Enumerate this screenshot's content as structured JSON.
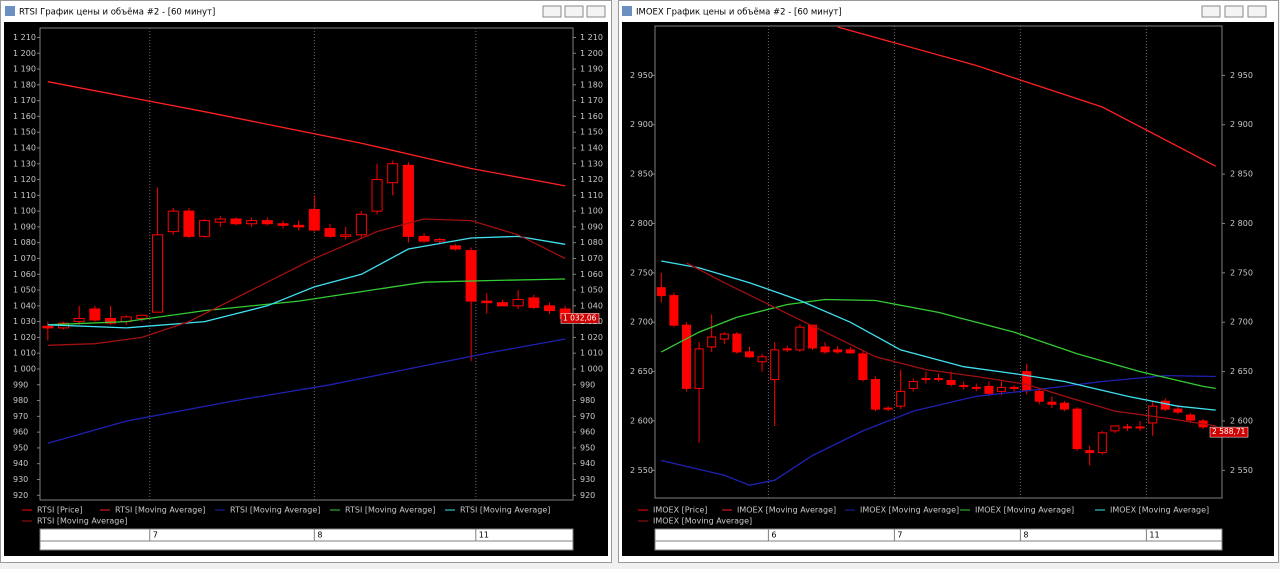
{
  "chart_data": [
    {
      "type": "candlestick",
      "title": "RTSI График цены и объёма #2 - [60 минут]",
      "xlim": [
        -0.5,
        33.5
      ],
      "ylim": [
        917,
        1216
      ],
      "yticks": [
        920,
        930,
        940,
        950,
        960,
        970,
        980,
        990,
        {
          "value": 1000,
          "label": "1 000"
        },
        {
          "value": 1010,
          "label": "1 010"
        },
        {
          "value": 1020,
          "label": "1 020"
        },
        {
          "value": 1030,
          "label": "1 030"
        },
        {
          "value": 1040,
          "label": "1 040"
        },
        {
          "value": 1050,
          "label": "1 050"
        },
        {
          "value": 1060,
          "label": "1 060"
        },
        {
          "value": 1070,
          "label": "1 070"
        },
        {
          "value": 1080,
          "label": "1 080"
        },
        {
          "value": 1090,
          "label": "1 090"
        },
        {
          "value": 1100,
          "label": "1 100"
        },
        {
          "value": 1110,
          "label": "1 110"
        },
        {
          "value": 1120,
          "label": "1 120"
        },
        {
          "value": 1130,
          "label": "1 130"
        },
        {
          "value": 1140,
          "label": "1 140"
        },
        {
          "value": 1150,
          "label": "1 150"
        },
        {
          "value": 1160,
          "label": "1 160"
        },
        {
          "value": 1170,
          "label": "1 170"
        },
        {
          "value": 1180,
          "label": "1 180"
        },
        {
          "value": 1190,
          "label": "1 190"
        },
        {
          "value": 1200,
          "label": "1 200"
        },
        {
          "value": 1210,
          "label": "1 210"
        }
      ],
      "xticks": [
        {
          "value": 6.5,
          "label": "7"
        },
        {
          "value": 17,
          "label": "8"
        },
        {
          "value": 27.3,
          "label": "11"
        }
      ],
      "candles": {
        "name": "RTSI [Price]",
        "color": "#ff0000",
        "open": [
          1027,
          1026,
          1030,
          1038,
          1032,
          1030,
          1032,
          1036,
          1087,
          1100,
          1084,
          1093,
          1095,
          1092,
          1094,
          1092,
          1091,
          1101,
          1089,
          1084,
          1085,
          1100,
          1118,
          1129,
          1084,
          1081,
          1078,
          1075,
          1043,
          1042,
          1040,
          1045,
          1040,
          1038
        ],
        "high": [
          1030,
          1030,
          1040,
          1040,
          1040,
          1034,
          1034,
          1115,
          1102,
          1102,
          1095,
          1097,
          1096,
          1096,
          1096,
          1094,
          1094,
          1110,
          1092,
          1090,
          1100,
          1130,
          1132,
          1131,
          1086,
          1083,
          1079,
          1077,
          1048,
          1044,
          1050,
          1047,
          1042,
          1040
        ],
        "low": [
          1018,
          1025,
          1028,
          1030,
          1028,
          1028,
          1030,
          1036,
          1085,
          1083,
          1083,
          1090,
          1091,
          1090,
          1091,
          1089,
          1088,
          1087,
          1083,
          1082,
          1083,
          1098,
          1110,
          1080,
          1080,
          1079,
          1075,
          1005,
          1035,
          1040,
          1038,
          1038,
          1035,
          1030
        ],
        "close": [
          1026,
          1029,
          1032,
          1031,
          1029,
          1033,
          1034,
          1085,
          1100,
          1084,
          1094,
          1095,
          1092,
          1094,
          1092,
          1091,
          1090,
          1088,
          1084,
          1085,
          1098,
          1120,
          1130,
          1084,
          1081,
          1082,
          1076,
          1043,
          1042,
          1040,
          1044,
          1039,
          1037,
          1032
        ]
      },
      "lines": [
        {
          "name": "RTSI [Moving Average]",
          "color": "#ff2020",
          "x": [
            0,
            10,
            20,
            27,
            33
          ],
          "values": [
            1182,
            1163,
            1143,
            1127,
            1116
          ]
        },
        {
          "name": "RTSI [Moving Average]",
          "color": "#2020b0",
          "x": [
            0,
            5,
            12,
            18,
            24,
            28,
            33
          ],
          "values": [
            953,
            967,
            980,
            990,
            1002,
            1010,
            1019
          ]
        },
        {
          "name": "RTSI [Moving Average]",
          "color": "#33cc33",
          "x": [
            0,
            5,
            10,
            16,
            20,
            24,
            28,
            33
          ],
          "values": [
            1028,
            1030,
            1037,
            1043,
            1049,
            1055,
            1056,
            1057
          ]
        },
        {
          "name": "RTSI [Moving Average]",
          "color": "#40e0f0",
          "x": [
            0,
            5,
            10,
            14,
            17,
            20,
            23,
            27,
            30,
            33
          ],
          "values": [
            1028,
            1026,
            1030,
            1040,
            1052,
            1060,
            1076,
            1083,
            1084,
            1079
          ]
        },
        {
          "name": "RTSI [Moving Average]",
          "color": "#a01010",
          "x": [
            0,
            3,
            6,
            9,
            13,
            17,
            21,
            24,
            27,
            30,
            33
          ],
          "values": [
            1015,
            1016,
            1020,
            1030,
            1050,
            1070,
            1087,
            1095,
            1094,
            1085,
            1070
          ]
        }
      ],
      "last_price": {
        "value": 1032.06,
        "label": "1 032,06"
      }
    },
    {
      "type": "candlestick",
      "title": "IMOEX График цены и объёма #2 - [60 минут]",
      "xlim": [
        -0.5,
        44.5
      ],
      "ylim": [
        2522,
        3000
      ],
      "yticks": [
        {
          "value": 2550,
          "label": "2 550"
        },
        {
          "value": 2600,
          "label": "2 600"
        },
        {
          "value": 2650,
          "label": "2 650"
        },
        {
          "value": 2700,
          "label": "2 700"
        },
        {
          "value": 2750,
          "label": "2 750"
        },
        {
          "value": 2800,
          "label": "2 800"
        },
        {
          "value": 2850,
          "label": "2 850"
        },
        {
          "value": 2900,
          "label": "2 900"
        },
        {
          "value": 2950,
          "label": "2 950"
        }
      ],
      "xticks": [
        {
          "value": 8.5,
          "label": "6"
        },
        {
          "value": 18.5,
          "label": "7"
        },
        {
          "value": 28.5,
          "label": "8"
        },
        {
          "value": 38.5,
          "label": "11"
        }
      ],
      "candles": {
        "name": "IMOEX [Price]",
        "color": "#ff0000",
        "open": [
          2735,
          2727,
          2697,
          2633,
          2675,
          2683,
          2688,
          2670,
          2660,
          2642,
          2672,
          2672,
          2697,
          2675,
          2672,
          2672,
          2668,
          2642,
          2612,
          2615,
          2633,
          2643,
          2643,
          2641,
          2636,
          2634,
          2635,
          2630,
          2634,
          2650,
          2630,
          2619,
          2618,
          2612,
          2570,
          2568,
          2590,
          2593,
          2594,
          2598,
          2620,
          2612,
          2606,
          2600,
          2590
        ],
        "high": [
          2750,
          2730,
          2700,
          2680,
          2708,
          2690,
          2690,
          2675,
          2668,
          2680,
          2676,
          2698,
          2698,
          2680,
          2676,
          2675,
          2672,
          2645,
          2615,
          2652,
          2643,
          2650,
          2648,
          2650,
          2640,
          2638,
          2640,
          2640,
          2636,
          2658,
          2633,
          2625,
          2620,
          2614,
          2575,
          2590,
          2595,
          2597,
          2600,
          2620,
          2623,
          2616,
          2608,
          2602,
          2592
        ],
        "low": [
          2720,
          2695,
          2630,
          2578,
          2670,
          2678,
          2668,
          2664,
          2650,
          2595,
          2670,
          2670,
          2672,
          2668,
          2668,
          2668,
          2640,
          2610,
          2610,
          2612,
          2630,
          2638,
          2640,
          2635,
          2632,
          2630,
          2625,
          2626,
          2630,
          2627,
          2617,
          2613,
          2610,
          2570,
          2555,
          2566,
          2588,
          2590,
          2590,
          2585,
          2610,
          2607,
          2598,
          2592,
          2588
        ],
        "close": [
          2727,
          2697,
          2633,
          2673,
          2685,
          2688,
          2670,
          2665,
          2665,
          2672,
          2673,
          2695,
          2674,
          2670,
          2670,
          2669,
          2642,
          2612,
          2613,
          2630,
          2640,
          2643,
          2643,
          2637,
          2635,
          2633,
          2628,
          2634,
          2633,
          2631,
          2620,
          2617,
          2612,
          2572,
          2568,
          2588,
          2595,
          2594,
          2594,
          2615,
          2612,
          2609,
          2601,
          2594,
          2589
        ]
      },
      "lines": [
        {
          "name": "IMOEX [Moving Average]",
          "color": "#ff2020",
          "x": [
            14,
            25,
            35,
            44
          ],
          "values": [
            2999,
            2960,
            2918,
            2858
          ]
        },
        {
          "name": "IMOEX [Moving Average]",
          "color": "#2020b0",
          "x": [
            0,
            5,
            7,
            9,
            12,
            16,
            20,
            25,
            30,
            35,
            40,
            44
          ],
          "values": [
            2560,
            2545,
            2535,
            2540,
            2565,
            2590,
            2610,
            2625,
            2632,
            2640,
            2646,
            2645
          ]
        },
        {
          "name": "IMOEX [Moving Average]",
          "color": "#33cc33",
          "x": [
            0,
            3,
            6,
            10,
            13,
            17,
            22,
            28,
            33,
            38,
            43,
            44
          ],
          "values": [
            2670,
            2690,
            2705,
            2718,
            2723,
            2722,
            2710,
            2690,
            2668,
            2650,
            2635,
            2633
          ]
        },
        {
          "name": "IMOEX [Moving Average]",
          "color": "#40e0f0",
          "x": [
            0,
            3,
            7,
            11,
            15,
            19,
            24,
            28,
            32,
            37,
            41,
            44
          ],
          "values": [
            2762,
            2755,
            2740,
            2722,
            2700,
            2672,
            2655,
            2648,
            2640,
            2625,
            2615,
            2611
          ]
        },
        {
          "name": "IMOEX [Moving Average]",
          "color": "#a01010",
          "x": [
            2,
            5,
            9,
            13,
            17,
            21,
            25,
            29,
            32,
            36,
            40,
            44
          ],
          "values": [
            2760,
            2740,
            2715,
            2690,
            2665,
            2652,
            2645,
            2637,
            2625,
            2610,
            2603,
            2595
          ]
        }
      ],
      "last_price": {
        "value": 2588.71,
        "label": "2 588,71"
      }
    }
  ]
}
